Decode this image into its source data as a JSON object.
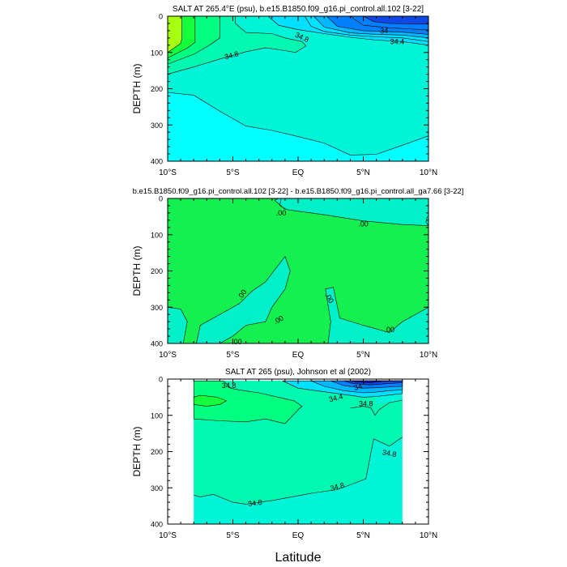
{
  "chart_data": [
    {
      "type": "contour",
      "title": "SALT AT 265.4°E (psu), b.e15.B1850.f09_g16.pi_control.all.102 [3-22]",
      "ylabel": "DEPTH (m)",
      "xlabel": "",
      "xlim": [
        -10,
        10
      ],
      "ylim": [
        400,
        0
      ],
      "x_ticks": [
        "10°S",
        "5°S",
        "EQ",
        "5°N",
        "10°N"
      ],
      "y_ticks": [
        "0",
        "100",
        "200",
        "300",
        "400"
      ],
      "contour_labels": [
        "34",
        "34.4",
        "34.8",
        "34.8"
      ]
    },
    {
      "type": "contour",
      "title": "b.e15.B1850.f09_g16.pi_control.all.102 [3-22] - b.e15.B1850.f09_g16.pi_control.all_ga7.66 [3-22]",
      "ylabel": "DEPTH (m)",
      "xlabel": "",
      "xlim": [
        -10,
        10
      ],
      "ylim": [
        400,
        0
      ],
      "x_ticks": [
        "10°S",
        "5°S",
        "EQ",
        "5°N",
        "10°N"
      ],
      "y_ticks": [
        "0",
        "100",
        "200",
        "300",
        "400"
      ],
      "contour_labels": [
        ".00",
        ".00",
        ".00",
        ".00",
        ".00",
        ".00",
        ".00"
      ]
    },
    {
      "type": "contour",
      "title": "SALT AT 265 (psu), Johnson et al (2002)",
      "ylabel": "DEPTH (m)",
      "xlabel": "Latitude",
      "xlim": [
        -10,
        10
      ],
      "ylim": [
        400,
        0
      ],
      "x_ticks": [
        "10°S",
        "5°S",
        "EQ",
        "5°N",
        "10°N"
      ],
      "y_ticks": [
        "0",
        "100",
        "200",
        "300",
        "400"
      ],
      "contour_labels": [
        "34.8",
        "34",
        "34.4",
        "34.8",
        "34.8",
        "34.8",
        "34.8"
      ]
    }
  ],
  "colors": {
    "lime": "#a6ff10",
    "green": "#14ff3c",
    "springgreen": "#00ff80",
    "seafoam": "#00f8b0",
    "aquamarine": "#00f5d8",
    "cyan": "#00ffff",
    "lightblue": "#00e0ff",
    "skyblue": "#00b8ff",
    "blue": "#0080ff",
    "deepblue": "#1048e8",
    "navy": "#1818c0",
    "diffgreen": "#14f050",
    "difftea": "#00f0c8"
  }
}
